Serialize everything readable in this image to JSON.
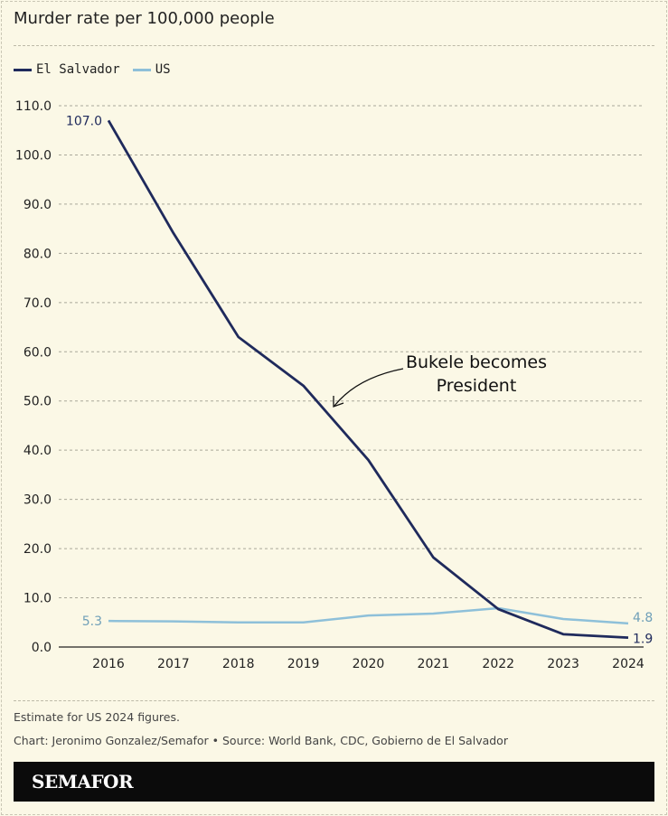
{
  "header": {
    "title": "Murder rate per 100,000 people"
  },
  "colors": {
    "el_salvador": "#1f2a5c",
    "us": "#8ec0d9",
    "background": "#fbf8e6"
  },
  "chart_data": {
    "type": "line",
    "title": "Murder rate per 100,000 people",
    "x": [
      "2016",
      "2017",
      "2018",
      "2019",
      "2020",
      "2021",
      "2022",
      "2023",
      "2024"
    ],
    "series": [
      {
        "name": "El Salvador",
        "values": [
          107.0,
          84.1,
          63.0,
          53.1,
          38.0,
          18.2,
          7.7,
          2.6,
          1.9
        ]
      },
      {
        "name": "US",
        "values": [
          5.3,
          5.2,
          5.0,
          5.0,
          6.4,
          6.8,
          7.9,
          5.7,
          4.8
        ]
      }
    ],
    "ylim": [
      0,
      110
    ],
    "yticks": [
      "0.0",
      "10.0",
      "20.0",
      "30.0",
      "40.0",
      "50.0",
      "60.0",
      "70.0",
      "80.0",
      "90.0",
      "100.0",
      "110.0"
    ],
    "grid": true,
    "legend": "top-left",
    "data_labels": {
      "el_start": "107.0",
      "el_end": "1.9",
      "us_start": "5.3",
      "us_end": "4.8"
    },
    "annotation": {
      "line1": "Bukele becomes",
      "line2": "President"
    }
  },
  "footer": {
    "note": "Estimate for US 2024 figures.",
    "credit": "Chart: Jeronimo Gonzalez/Semafor • Source: World Bank, CDC, Gobierno de El Salvador",
    "logo": "SEMAFOR"
  }
}
